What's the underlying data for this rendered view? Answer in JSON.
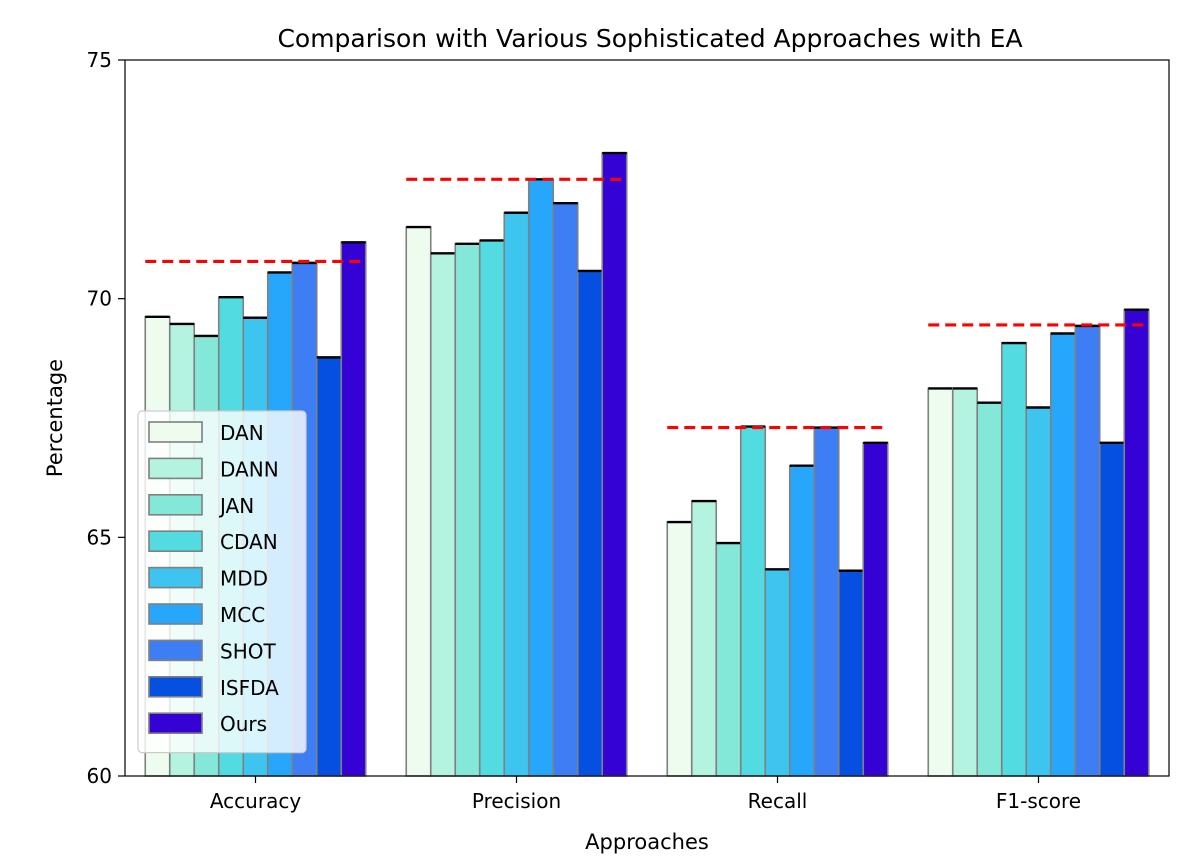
{
  "chart_data": {
    "type": "bar",
    "title": "Comparison with Various Sophisticated Approaches with EA",
    "xlabel": "Approaches",
    "ylabel": "Percentage",
    "ylim": [
      60,
      75
    ],
    "yticks": [
      60,
      65,
      70,
      75
    ],
    "categories": [
      "Accuracy",
      "Precision",
      "Recall",
      "F1-score"
    ],
    "series": [
      {
        "name": "DAN",
        "color": "#eefcf0",
        "values": [
          69.62,
          71.5,
          65.32,
          68.12
        ]
      },
      {
        "name": "DANN",
        "color": "#b3f3e0",
        "values": [
          69.47,
          70.95,
          65.76,
          68.12
        ]
      },
      {
        "name": "JAN",
        "color": "#84e8d8",
        "values": [
          69.22,
          71.15,
          64.88,
          67.82
        ]
      },
      {
        "name": "CDAN",
        "color": "#52dce2",
        "values": [
          70.03,
          71.22,
          67.32,
          69.07
        ]
      },
      {
        "name": "MDD",
        "color": "#3dc5f0",
        "values": [
          69.6,
          71.8,
          64.33,
          67.72
        ]
      },
      {
        "name": "MCC",
        "color": "#27a7fb",
        "values": [
          70.55,
          72.5,
          66.5,
          69.27
        ]
      },
      {
        "name": "SHOT",
        "color": "#3d7ef5",
        "values": [
          70.75,
          72.0,
          67.3,
          69.43
        ]
      },
      {
        "name": "ISFDA",
        "color": "#0550e0",
        "values": [
          68.77,
          70.58,
          64.3,
          66.98
        ]
      },
      {
        "name": "Ours",
        "color": "#3502d6",
        "values": [
          71.18,
          73.05,
          66.98,
          69.77
        ]
      }
    ],
    "reference_lines": {
      "color": "#ff0000",
      "values": [
        70.78,
        72.5,
        67.3,
        69.45
      ]
    },
    "legend_position": "lower-left",
    "grid": false
  }
}
